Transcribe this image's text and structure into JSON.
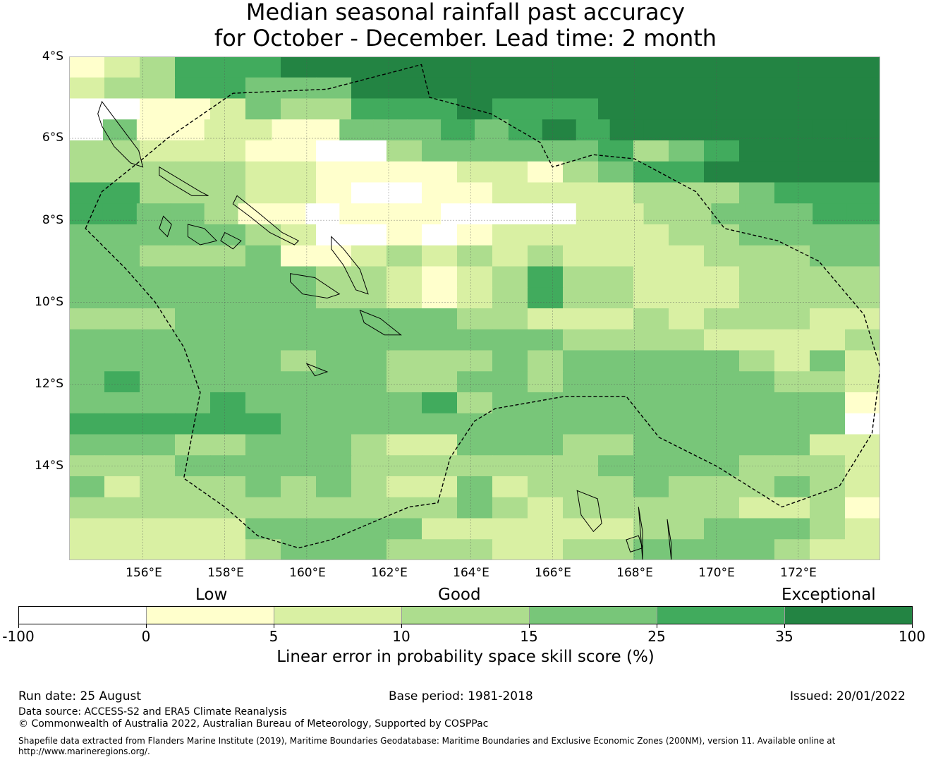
{
  "title": {
    "line1": "Median seasonal rainfall past accuracy",
    "line2": "for October - December. Lead time: 2 month"
  },
  "map": {
    "lat_labels": [
      "4°S",
      "6°S",
      "8°S",
      "10°S",
      "12°S",
      "14°S"
    ],
    "lon_labels": [
      "156°E",
      "158°E",
      "160°E",
      "162°E",
      "164°E",
      "166°E",
      "168°E",
      "170°E",
      "172°E"
    ],
    "lon_range": [
      154.2,
      174.0
    ],
    "lat_range": [
      -16.3,
      -4.0
    ],
    "cell_size_deg": 0.833,
    "skill_grid_rows_top_to_bottom": [
      "12355566666666666666666",
      "23355444666666666666666",
      "00112433555655566666666",
      "041122114445456566666666",
      "33222110034444453456666",
      "33333221111221345566666",
      "55333221001122223334555",
      "554431101110000223344455",
      "44444320010122222334444",
      "44333411232323222233344",
      "44444443321235332223333",
      "44444443321235332223333",
      "33344444444332223233322",
      "44444444444444333322223",
      "44444434433343444443242",
      "45444444433443444444332",
      "44445444445344444444441",
      "55555544444444444444440",
      "44433444322444334444422",
      "33344444333333344443332",
      "42333434322423334333432",
      "33333333333432333332231",
      "22222444442222223344432",
      "22222344433322334444322"
    ],
    "grid_note": "skill class per 0.83° cell: 0=-100..0,1=0..5,2=5..10,3=10..15,4=15..25,5=25..35,6=35..100"
  },
  "colorbar": {
    "colors": [
      "#ffffff",
      "#ffffcc",
      "#d9f0a3",
      "#addd8e",
      "#78c679",
      "#41ab5d",
      "#238443"
    ],
    "ticks": [
      "-100",
      "0",
      "5",
      "10",
      "15",
      "25",
      "35",
      "100"
    ],
    "category_labels": [
      "Low",
      "Good",
      "Exceptional"
    ],
    "title": "Linear error in probability space skill score (%)"
  },
  "footer": {
    "run_date": "Run date: 25 August",
    "base_period": "Base period: 1981-2018",
    "issued": "Issued: 20/01/2022",
    "data_source": "Data source: ACCESS-S2 and ERA5 Climate Reanalysis",
    "copyright": "© Commonwealth of Australia 2022, Australian Bureau of Meteorology, Supported by COSPPac",
    "shapefile_line1": "Shapefile data extracted from Flanders Marine Institute (2019), Maritime Boundaries Geodatabase: Maritime Boundaries and Exclusive Economic Zones (200NM), version 11. Available online at",
    "shapefile_line2": "http://www.marineregions.org/."
  }
}
